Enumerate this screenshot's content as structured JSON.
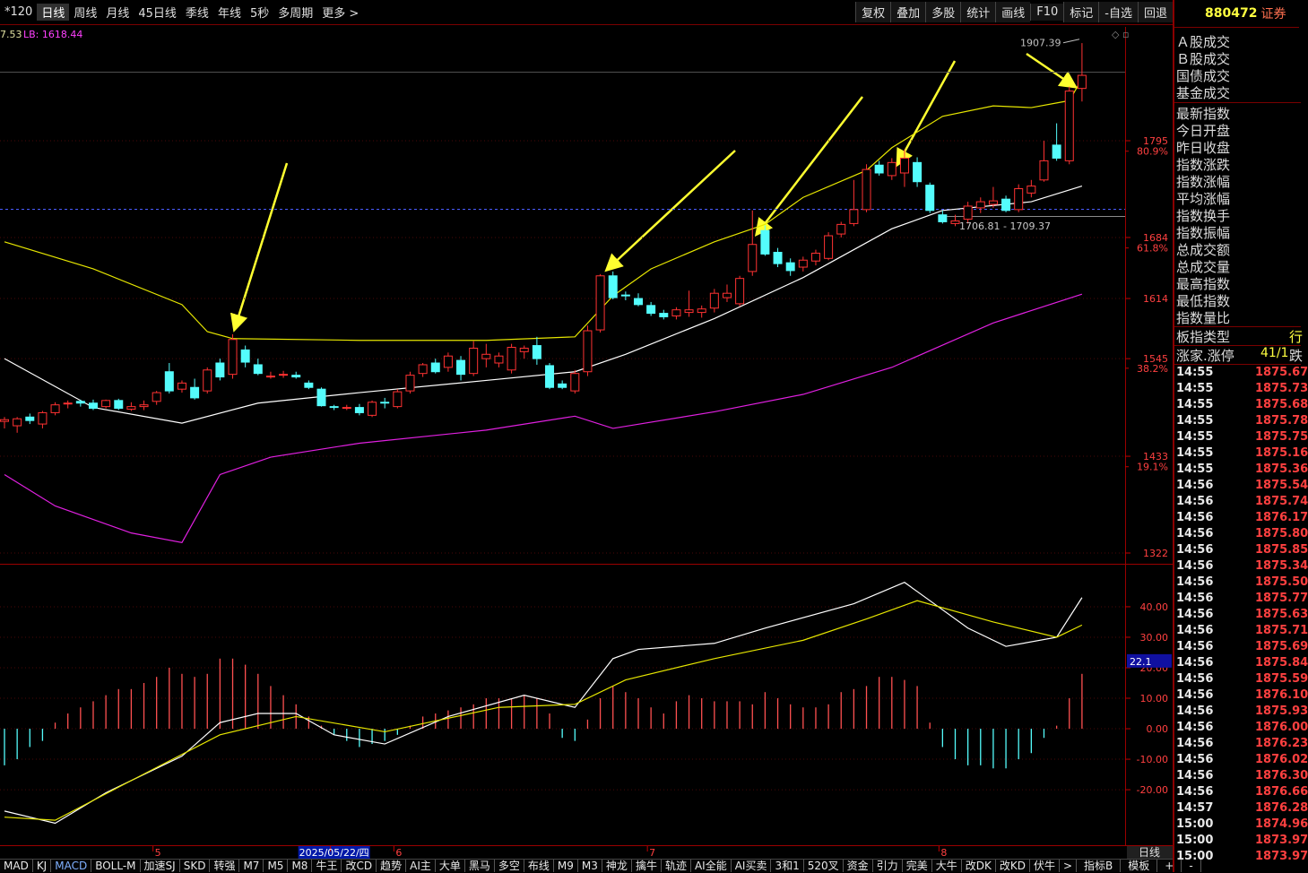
{
  "toolbar": {
    "left": [
      "*120",
      "日线",
      "周线",
      "月线",
      "45日线",
      "季线",
      "年线",
      "5秒",
      "多周期",
      "更多 >"
    ],
    "active": 1,
    "right": [
      "复权",
      "叠加",
      "多股",
      "统计",
      "画线",
      "F10",
      "标记",
      "-自选",
      "回退"
    ]
  },
  "info_bar": {
    "value": "7.53",
    "lb": "LB: 1618.44"
  },
  "chart_data": [
    {
      "type": "candlestick",
      "categories": [
        null,
        null,
        null,
        null,
        null,
        null,
        null,
        null,
        null,
        null,
        null,
        null,
        "5",
        null,
        null,
        null,
        null,
        null,
        null,
        null,
        null,
        null,
        null,
        null,
        null,
        null,
        "2025/05/22/四",
        null,
        null,
        null,
        null,
        "6",
        null,
        null,
        null,
        null,
        null,
        null,
        null,
        null,
        null,
        null,
        null,
        null,
        null,
        null,
        null,
        null,
        null,
        null,
        null,
        "7",
        null,
        null,
        null,
        null,
        null,
        null,
        null,
        null,
        null,
        null,
        null,
        null,
        null,
        null,
        null,
        null,
        null,
        null,
        null,
        null,
        null,
        null,
        "8",
        null,
        null,
        null,
        null,
        null,
        null,
        null,
        null,
        null,
        null,
        null
      ],
      "highlight": 26,
      "open": [
        1473,
        1468,
        1478,
        1470,
        1483,
        1493,
        1496,
        1494,
        1490,
        1497,
        1487,
        1490,
        1496,
        1530,
        1510,
        1512,
        1508,
        1540,
        1527,
        1555,
        1538,
        1525,
        1527,
        1526,
        1517,
        1510,
        1490,
        1489,
        1489,
        1480,
        1495,
        1490,
        1508,
        1528,
        1540,
        1535,
        1543,
        1528,
        1545,
        1540,
        1532,
        1553,
        1560,
        1537,
        1516,
        1508,
        1530,
        1578,
        1640,
        1618,
        1614,
        1606,
        1597,
        1594,
        1598,
        1598,
        1603,
        1615,
        1608,
        1645,
        1692,
        1667,
        1655,
        1650,
        1657,
        1660,
        1688,
        1700,
        1716,
        1767,
        1755,
        1758,
        1770,
        1744,
        1710,
        1700,
        1705,
        1718,
        1722,
        1728,
        1716,
        1735,
        1750,
        1790,
        1772,
        1855
      ],
      "high": [
        1478,
        1478,
        1482,
        1485,
        1495,
        1497,
        1498,
        1498,
        1498,
        1499,
        1495,
        1497,
        1508,
        1540,
        1520,
        1522,
        1535,
        1545,
        1573,
        1560,
        1545,
        1530,
        1531,
        1530,
        1520,
        1512,
        1492,
        1492,
        1493,
        1497,
        1500,
        1510,
        1530,
        1540,
        1545,
        1552,
        1548,
        1565,
        1562,
        1552,
        1562,
        1560,
        1570,
        1540,
        1520,
        1532,
        1583,
        1642,
        1645,
        1622,
        1620,
        1610,
        1601,
        1604,
        1623,
        1606,
        1625,
        1630,
        1640,
        1715,
        1698,
        1672,
        1660,
        1662,
        1670,
        1690,
        1702,
        1750,
        1768,
        1772,
        1775,
        1785,
        1776,
        1747,
        1715,
        1710,
        1725,
        1730,
        1742,
        1732,
        1745,
        1750,
        1795,
        1815,
        1857,
        1907
      ],
      "low": [
        1465,
        1460,
        1470,
        1465,
        1480,
        1488,
        1490,
        1486,
        1488,
        1486,
        1485,
        1486,
        1492,
        1505,
        1506,
        1498,
        1505,
        1520,
        1522,
        1535,
        1526,
        1522,
        1523,
        1522,
        1510,
        1490,
        1486,
        1486,
        1480,
        1478,
        1488,
        1488,
        1505,
        1524,
        1528,
        1530,
        1520,
        1525,
        1535,
        1535,
        1528,
        1545,
        1538,
        1510,
        1510,
        1505,
        1525,
        1575,
        1613,
        1612,
        1605,
        1594,
        1590,
        1590,
        1593,
        1592,
        1598,
        1610,
        1605,
        1640,
        1663,
        1650,
        1640,
        1645,
        1652,
        1658,
        1684,
        1697,
        1713,
        1755,
        1750,
        1742,
        1742,
        1712,
        1700,
        1697,
        1700,
        1712,
        1718,
        1713,
        1713,
        1730,
        1748,
        1772,
        1768,
        1840
      ],
      "close": [
        1475,
        1476,
        1474,
        1483,
        1492,
        1494,
        1494,
        1488,
        1497,
        1488,
        1490,
        1492,
        1506,
        1508,
        1517,
        1500,
        1532,
        1524,
        1567,
        1541,
        1528,
        1525,
        1527,
        1524,
        1512,
        1491,
        1489,
        1489,
        1483,
        1495,
        1494,
        1507,
        1526,
        1538,
        1530,
        1548,
        1527,
        1557,
        1550,
        1548,
        1558,
        1557,
        1545,
        1512,
        1512,
        1528,
        1577,
        1640,
        1615,
        1617,
        1607,
        1597,
        1593,
        1601,
        1601,
        1602,
        1620,
        1620,
        1637,
        1676,
        1665,
        1654,
        1646,
        1658,
        1666,
        1686,
        1699,
        1716,
        1762,
        1758,
        1770,
        1775,
        1748,
        1715,
        1702,
        1703,
        1720,
        1725,
        1726,
        1715,
        1740,
        1743,
        1772,
        1775,
        1852,
        1870
      ],
      "up_color": "#ff3232",
      "down_color": "#54fcfc",
      "ylim": [
        1310.7,
        1925.6
      ],
      "yticks": [
        1795,
        1684,
        1614,
        1545,
        1433,
        1322
      ],
      "fib_ticks": [
        {
          "value": 1783,
          "label": "80.9%"
        },
        {
          "value": 1672,
          "label": "61.8%"
        },
        {
          "value": 1534,
          "label": "38.2%"
        },
        {
          "value": 1421,
          "label": "19.1%"
        }
      ],
      "grid": true,
      "reference_lines": [
        {
          "value": 1874,
          "color": "#505050"
        },
        {
          "value": 1717,
          "color": "#4a5cff",
          "dashed": true
        },
        {
          "value": 1709,
          "color": "#8a8a8a",
          "start": 74
        }
      ],
      "lines": [
        {
          "color": "#e6e600",
          "x": [
            0,
            7,
            14,
            16,
            18,
            28,
            38,
            45,
            48,
            51,
            56,
            60,
            63,
            68,
            70,
            74,
            78,
            81,
            84,
            85
          ],
          "values": [
            1679,
            1648,
            1607,
            1576,
            1568,
            1566,
            1566,
            1570,
            1617,
            1648,
            1679,
            1699,
            1730,
            1761,
            1787,
            1823,
            1835,
            1833,
            1841,
            1866
          ]
        },
        {
          "color": "#ffffff",
          "x": [
            0,
            7,
            14,
            20,
            28,
            38,
            45,
            49,
            56,
            63,
            70,
            74,
            81,
            85
          ],
          "values": [
            1545,
            1489,
            1471,
            1494,
            1506,
            1520,
            1530,
            1550,
            1591,
            1638,
            1694,
            1715,
            1725,
            1743
          ]
        },
        {
          "color": "#e020e0",
          "x": [
            0,
            4,
            10,
            14,
            17,
            21,
            28,
            38,
            45,
            48,
            56,
            63,
            70,
            78,
            85
          ],
          "values": [
            1412,
            1376,
            1345,
            1334,
            1412,
            1432,
            1448,
            1463,
            1479,
            1465,
            1484,
            1504,
            1535,
            1586,
            1619
          ]
        }
      ],
      "high_label": 1907.39,
      "range_label": "1706.81 - 1709.37"
    },
    {
      "type": "macd",
      "values": [
        -12,
        -10,
        -6,
        -4,
        2,
        5,
        7,
        9,
        11,
        13,
        13,
        15,
        17,
        20,
        18,
        17,
        18,
        23,
        23,
        21,
        18,
        14,
        11,
        8,
        4,
        1,
        -2,
        -4,
        -6,
        -5,
        -4,
        -2,
        1,
        4,
        5,
        6,
        7,
        8,
        10,
        10,
        10,
        11,
        10,
        5,
        -3,
        -4,
        3,
        10,
        14,
        12,
        10,
        7,
        5,
        9,
        11,
        10,
        9,
        9,
        9,
        8,
        12,
        10,
        8,
        7,
        7,
        8,
        12,
        13,
        14,
        17,
        17,
        16,
        14,
        2,
        -6,
        -10,
        -12,
        -12,
        -13,
        -13,
        -10,
        -8,
        -3,
        1,
        10,
        18
      ],
      "up_color": "#ff5050",
      "down_color": "#54fcfc",
      "ylim": [
        -38.2,
        53.8
      ],
      "yticks": [
        {
          "value": 40,
          "label": "40.00"
        },
        {
          "value": 30,
          "label": "30.00"
        },
        {
          "value": 20,
          "label": "20.00"
        },
        {
          "value": 10,
          "label": "10.00"
        },
        {
          "value": 0,
          "label": "0.00"
        },
        {
          "value": -10,
          "label": "-10.00"
        },
        {
          "value": -20,
          "label": "-20.00"
        }
      ],
      "grid": true,
      "lines": [
        {
          "color": "#ffffff",
          "x": [
            0,
            4,
            8,
            14,
            17,
            20,
            23,
            26,
            30,
            35,
            41,
            45,
            48,
            50,
            56,
            60,
            67,
            71,
            72,
            76,
            79,
            83,
            85
          ],
          "values": [
            -27,
            -31,
            -21,
            -9,
            2,
            5,
            5,
            -2,
            -5,
            4,
            11,
            7,
            23,
            26,
            28,
            33,
            41,
            48,
            45,
            33,
            27,
            30,
            43
          ]
        },
        {
          "color": "#e6e600",
          "x": [
            0,
            4,
            10,
            17,
            23,
            30,
            39,
            45,
            49,
            56,
            63,
            68,
            72,
            78,
            83,
            85
          ],
          "values": [
            -29,
            -30,
            -17,
            -2,
            4,
            -1,
            7,
            8,
            16,
            23,
            29,
            36,
            42,
            35,
            30,
            34
          ]
        }
      ],
      "marker": 22.1
    }
  ],
  "period_label": "日线",
  "right_panel": {
    "code": "880472",
    "name": "证券",
    "fields_a": [
      "Ａ股成交",
      "Ｂ股成交",
      "国债成交",
      "基金成交"
    ],
    "fields_b": [
      "最新指数",
      "今日开盘",
      "昨日收盘",
      "指数涨跌",
      "指数涨幅",
      "平均涨幅",
      "指数换手",
      "指数振幅",
      "总成交额",
      "总成交量",
      "最高指数",
      "最低指数",
      "指数量比"
    ],
    "type_label": "板指类型",
    "type_value": "行",
    "adv_label": "涨家.涨停",
    "adv_value": "41/1",
    "adv_suffix": "跌",
    "ticks": [
      [
        "14:55",
        "1875.67"
      ],
      [
        "14:55",
        "1875.73"
      ],
      [
        "14:55",
        "1875.68"
      ],
      [
        "14:55",
        "1875.78"
      ],
      [
        "14:55",
        "1875.75"
      ],
      [
        "14:55",
        "1875.16"
      ],
      [
        "14:55",
        "1875.36"
      ],
      [
        "14:56",
        "1875.54"
      ],
      [
        "14:56",
        "1875.74"
      ],
      [
        "14:56",
        "1876.17"
      ],
      [
        "14:56",
        "1875.80"
      ],
      [
        "14:56",
        "1875.85"
      ],
      [
        "14:56",
        "1875.34"
      ],
      [
        "14:56",
        "1875.50"
      ],
      [
        "14:56",
        "1875.77"
      ],
      [
        "14:56",
        "1875.63"
      ],
      [
        "14:56",
        "1875.71"
      ],
      [
        "14:56",
        "1875.69"
      ],
      [
        "14:56",
        "1875.84"
      ],
      [
        "14:56",
        "1875.59"
      ],
      [
        "14:56",
        "1876.10"
      ],
      [
        "14:56",
        "1875.93"
      ],
      [
        "14:56",
        "1876.00"
      ],
      [
        "14:56",
        "1876.23"
      ],
      [
        "14:56",
        "1876.02"
      ],
      [
        "14:56",
        "1876.30"
      ],
      [
        "14:56",
        "1876.66"
      ],
      [
        "14:57",
        "1876.28"
      ],
      [
        "15:00",
        "1874.96"
      ],
      [
        "15:00",
        "1873.97"
      ],
      [
        "15:00",
        "1873.97"
      ]
    ]
  },
  "bottom_tabs": {
    "items": [
      "MAD",
      "KJ",
      "MACD",
      "BOLL-M",
      "加速SJ",
      "SKD",
      "转强",
      "M7",
      "M5",
      "M8",
      "牛王",
      "改CD",
      "趋势",
      "AI主",
      "大单",
      "黑马",
      "多空",
      "布线",
      "M9",
      "M3",
      "神龙",
      "擒牛",
      "轨迹",
      "AI全能",
      "AI买卖",
      "3和1",
      "520叉",
      "资金",
      "引力",
      "完美",
      "大牛",
      "改DK",
      "改KD",
      "伏牛",
      ">"
    ],
    "active": 2,
    "right": [
      "指标B",
      "模板",
      "+",
      "-"
    ]
  }
}
